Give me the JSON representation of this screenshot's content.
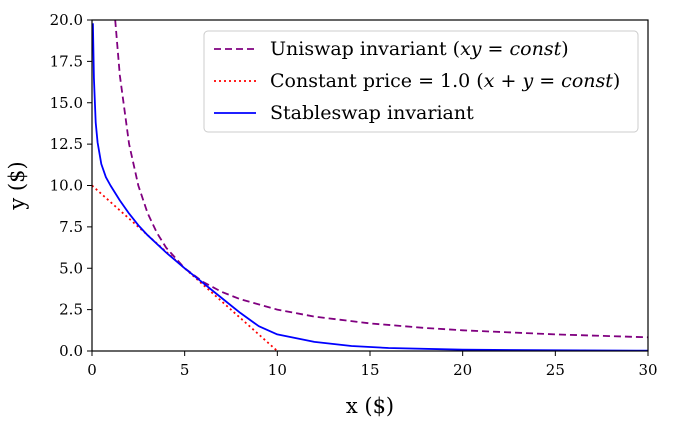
{
  "chart_data": {
    "type": "line",
    "title": "",
    "xlabel": "x ($)",
    "ylabel": "y ($)",
    "xlim": [
      0,
      30
    ],
    "ylim": [
      0,
      20
    ],
    "x_ticks": [
      "0",
      "5",
      "10",
      "15",
      "20",
      "25",
      "30"
    ],
    "y_ticks": [
      "0.0",
      "2.5",
      "5.0",
      "7.5",
      "10.0",
      "12.5",
      "15.0",
      "17.5",
      "20.0"
    ],
    "grid": false,
    "legend_position": "top-right",
    "series": [
      {
        "name": "Uniswap invariant (xy = const)",
        "style": "dashed",
        "color": "#800080",
        "x": [
          1.25,
          1.5,
          2,
          2.5,
          3,
          3.5,
          4,
          5,
          6,
          7,
          8,
          10,
          12,
          15,
          18,
          20,
          25,
          30
        ],
        "y": [
          20,
          16.67,
          12.5,
          10,
          8.33,
          7.14,
          6.25,
          5,
          4.17,
          3.57,
          3.13,
          2.5,
          2.08,
          1.67,
          1.39,
          1.25,
          1,
          0.83
        ]
      },
      {
        "name": "Constant price = 1.0 (x + y = const)",
        "style": "dotted",
        "color": "#ff0000",
        "x": [
          0,
          10
        ],
        "y": [
          10,
          0
        ]
      },
      {
        "name": "Stableswap invariant",
        "style": "solid",
        "color": "#0000ff",
        "x": [
          0.05,
          0.1,
          0.2,
          0.3,
          0.5,
          0.75,
          1,
          1.5,
          2,
          2.5,
          3,
          4,
          5,
          6,
          7,
          8,
          9,
          10,
          12,
          14,
          16,
          20,
          25,
          30
        ],
        "y": [
          19.8,
          16.5,
          13.8,
          12.6,
          11.3,
          10.5,
          10.0,
          9.1,
          8.3,
          7.6,
          7.0,
          5.95,
          5.0,
          4.1,
          3.2,
          2.3,
          1.5,
          1.0,
          0.55,
          0.3,
          0.18,
          0.08,
          0.04,
          0.02
        ]
      }
    ]
  }
}
